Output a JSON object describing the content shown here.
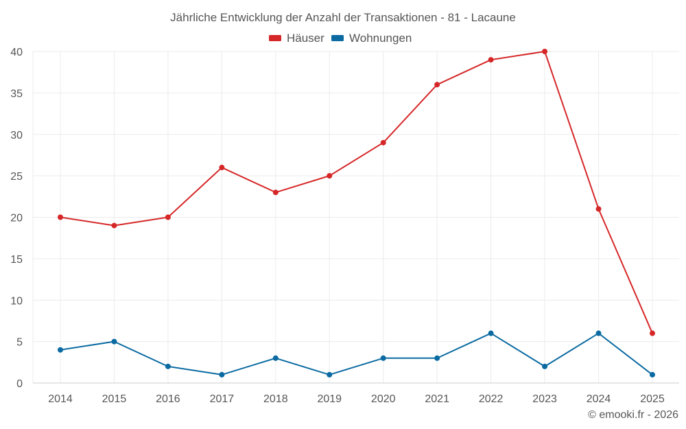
{
  "chart_data": {
    "type": "line",
    "title": "Jährliche Entwicklung der Anzahl der Transaktionen - 81 - Lacaune",
    "categories": [
      "2014",
      "2015",
      "2016",
      "2017",
      "2018",
      "2019",
      "2020",
      "2021",
      "2022",
      "2023",
      "2024",
      "2025"
    ],
    "series": [
      {
        "name": "Häuser",
        "color": "#d62728",
        "values": [
          20,
          19,
          20,
          26,
          23,
          25,
          29,
          36,
          39,
          40,
          21,
          6
        ]
      },
      {
        "name": "Wohnungen",
        "color": "#0a6aa1",
        "values": [
          4,
          5,
          2,
          1,
          3,
          1,
          3,
          3,
          6,
          2,
          6,
          1
        ]
      }
    ],
    "yticks": [
      0,
      5,
      10,
      15,
      20,
      25,
      30,
      35,
      40
    ],
    "ylim": [
      0,
      40
    ],
    "xlabel": "",
    "ylabel": "",
    "grid": true,
    "legend_position": "top-center"
  },
  "credit": "© emooki.fr - 2026"
}
